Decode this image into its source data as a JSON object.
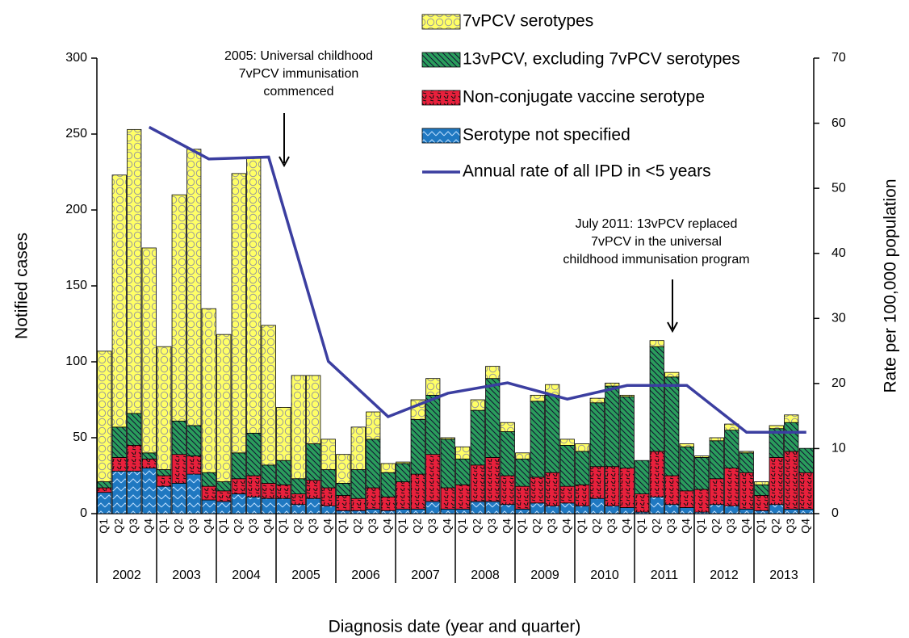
{
  "chart_data": {
    "type": "bar",
    "stacked": true,
    "categories": [
      "Q1",
      "Q2",
      "Q3",
      "Q4",
      "Q1",
      "Q2",
      "Q3",
      "Q4",
      "Q1",
      "Q2",
      "Q3",
      "Q4",
      "Q1",
      "Q2",
      "Q3",
      "Q4",
      "Q1",
      "Q2",
      "Q3",
      "Q4",
      "Q1",
      "Q2",
      "Q3",
      "Q4",
      "Q1",
      "Q2",
      "Q3",
      "Q4",
      "Q1",
      "Q2",
      "Q3",
      "Q4",
      "Q1",
      "Q2",
      "Q3",
      "Q4",
      "Q1",
      "Q2",
      "Q3",
      "Q4",
      "Q1",
      "Q2",
      "Q3",
      "Q4",
      "Q1",
      "Q2",
      "Q3",
      "Q4"
    ],
    "years": [
      "2002",
      "2003",
      "2004",
      "2005",
      "2006",
      "2007",
      "2008",
      "2009",
      "2010",
      "2011",
      "2012",
      "2013"
    ],
    "series": [
      {
        "name": "7vPCV serotypes",
        "color": "#ffff66",
        "values": [
          86,
          166,
          187,
          135,
          81,
          149,
          182,
          108,
          97,
          184,
          182,
          92,
          35,
          68,
          45,
          20,
          19,
          28,
          18,
          6,
          1,
          13,
          11,
          1,
          8,
          7,
          8,
          6,
          4,
          4,
          7,
          4,
          5,
          3,
          2,
          1,
          0,
          4,
          3,
          2,
          1,
          2,
          4,
          1,
          2,
          2,
          5,
          0
        ]
      },
      {
        "name": "13vPCV, excluding 7vPCV serotypes",
        "color": "#2a9d5c",
        "values": [
          4,
          20,
          21,
          4,
          4,
          22,
          20,
          9,
          6,
          17,
          28,
          12,
          16,
          10,
          24,
          12,
          8,
          19,
          32,
          16,
          12,
          36,
          39,
          32,
          17,
          36,
          52,
          29,
          18,
          50,
          51,
          27,
          22,
          42,
          53,
          47,
          22,
          69,
          65,
          29,
          21,
          25,
          25,
          13,
          7,
          19,
          19,
          16
        ]
      },
      {
        "name": "Non-conjugate vaccine serotype",
        "color": "#e8203c",
        "values": [
          3,
          9,
          17,
          6,
          7,
          19,
          12,
          9,
          7,
          10,
          14,
          10,
          9,
          7,
          12,
          12,
          10,
          8,
          14,
          9,
          18,
          23,
          31,
          14,
          16,
          24,
          29,
          19,
          15,
          17,
          22,
          11,
          14,
          21,
          26,
          26,
          12,
          30,
          19,
          11,
          15,
          17,
          25,
          24,
          10,
          31,
          38,
          24
        ]
      },
      {
        "name": "Serotype not specified",
        "color": "#1f78c1",
        "values": [
          14,
          28,
          28,
          30,
          18,
          20,
          26,
          9,
          8,
          13,
          11,
          10,
          10,
          6,
          10,
          5,
          2,
          2,
          3,
          2,
          3,
          3,
          8,
          3,
          3,
          8,
          8,
          6,
          3,
          7,
          5,
          7,
          5,
          10,
          5,
          4,
          1,
          11,
          6,
          4,
          1,
          6,
          5,
          3,
          2,
          6,
          3,
          3
        ]
      }
    ],
    "rate_line": {
      "name": "Annual rate of all IPD in <5 years",
      "color": "#3b3ea0",
      "axis": "y2",
      "values": [
        59.4,
        54.5,
        54.8,
        23.4,
        14.9,
        18.5,
        20.1,
        17.6,
        19.7,
        19.7,
        12.5,
        12.5
      ]
    },
    "ylim": [
      0,
      300
    ],
    "yticks": [
      0,
      50,
      100,
      150,
      200,
      250,
      300
    ],
    "y2lim": [
      0,
      70
    ],
    "y2ticks": [
      0,
      10,
      20,
      30,
      40,
      50,
      60,
      70
    ],
    "ylabel": "Notified cases",
    "y2label": "Rate per 100,000 population",
    "xlabel": "Diagnosis date (year and quarter)",
    "annotations": [
      {
        "lines": [
          "2005: Universal childhood",
          "7vPCV immunisation",
          "commenced"
        ]
      },
      {
        "lines": [
          "July 2011: 13vPCV replaced",
          "7vPCV in the universal",
          "childhood immunisation program"
        ]
      }
    ]
  }
}
